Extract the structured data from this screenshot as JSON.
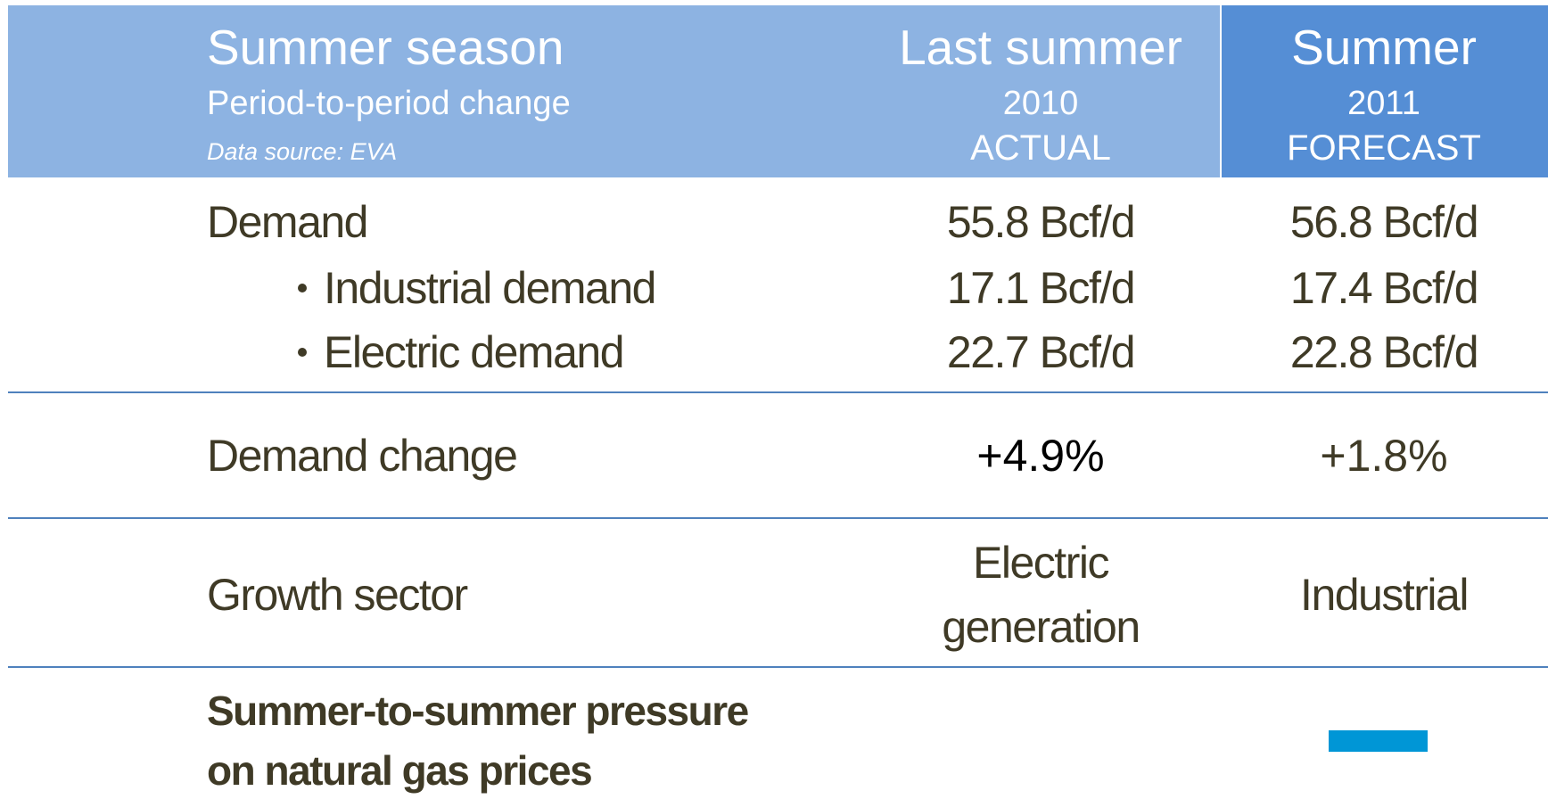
{
  "header": {
    "title": "Summer season",
    "subtitle": "Period-to-period change",
    "source": "Data source: EVA"
  },
  "columns": [
    {
      "title": "Last summer",
      "year": "2010",
      "status": "ACTUAL"
    },
    {
      "title": "Summer",
      "year": "2011",
      "status": "FORECAST"
    }
  ],
  "rows": [
    {
      "label": "Demand",
      "values": [
        "55.8 Bcf/d",
        "56.8 Bcf/d"
      ]
    },
    {
      "label": "Industrial demand",
      "values": [
        "17.1 Bcf/d",
        "17.4 Bcf/d"
      ]
    },
    {
      "label": "Electric demand",
      "values": [
        "22.7 Bcf/d",
        "22.8 Bcf/d"
      ]
    },
    {
      "label": "Demand change",
      "values": [
        "+4.9%",
        "+1.8%"
      ]
    },
    {
      "label": "Growth sector",
      "values": [
        [
          "Electric",
          "generation"
        ],
        "Industrial"
      ]
    },
    {
      "label": [
        "Summer-to-summer pressure",
        "on natural gas prices"
      ]
    }
  ]
}
